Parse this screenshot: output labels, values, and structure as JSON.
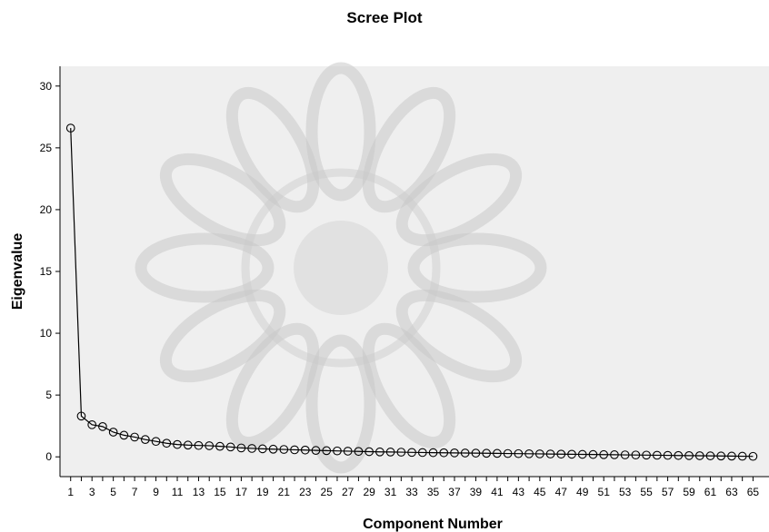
{
  "chart_data": {
    "type": "line",
    "title": "Scree Plot",
    "xlabel": "Component Number",
    "ylabel": "Eigenvalue",
    "x": [
      1,
      2,
      3,
      4,
      5,
      6,
      7,
      8,
      9,
      10,
      11,
      12,
      13,
      14,
      15,
      16,
      17,
      18,
      19,
      20,
      21,
      22,
      23,
      24,
      25,
      26,
      27,
      28,
      29,
      30,
      31,
      32,
      33,
      34,
      35,
      36,
      37,
      38,
      39,
      40,
      41,
      42,
      43,
      44,
      45,
      46,
      47,
      48,
      49,
      50,
      51,
      52,
      53,
      54,
      55,
      56,
      57,
      58,
      59,
      60,
      61,
      62,
      63,
      64,
      65
    ],
    "series": [
      {
        "values": [
          26.6,
          3.3,
          2.6,
          2.45,
          2.0,
          1.75,
          1.6,
          1.4,
          1.25,
          1.1,
          1.0,
          0.95,
          0.92,
          0.9,
          0.85,
          0.8,
          0.72,
          0.68,
          0.65,
          0.62,
          0.6,
          0.57,
          0.55,
          0.52,
          0.5,
          0.48,
          0.46,
          0.44,
          0.42,
          0.4,
          0.39,
          0.38,
          0.36,
          0.35,
          0.34,
          0.33,
          0.32,
          0.31,
          0.3,
          0.29,
          0.28,
          0.27,
          0.26,
          0.25,
          0.24,
          0.23,
          0.22,
          0.21,
          0.2,
          0.19,
          0.18,
          0.17,
          0.16,
          0.15,
          0.14,
          0.13,
          0.12,
          0.11,
          0.1,
          0.09,
          0.08,
          0.07,
          0.06,
          0.05,
          0.04
        ]
      }
    ],
    "x_tick_labels": [
      "1",
      "3",
      "5",
      "7",
      "9",
      "11",
      "13",
      "15",
      "17",
      "19",
      "21",
      "23",
      "25",
      "27",
      "29",
      "31",
      "33",
      "35",
      "37",
      "39",
      "41",
      "43",
      "45",
      "47",
      "49",
      "51",
      "53",
      "55",
      "57",
      "59",
      "61",
      "63",
      "65"
    ],
    "y_ticks": [
      0,
      5,
      10,
      15,
      20,
      25,
      30
    ],
    "xlim": [
      0,
      66.5
    ],
    "ylim": [
      -1.6,
      31.6
    ],
    "grid": false,
    "colors": {
      "plot_background": "#efefef",
      "line": "#000000",
      "marker_stroke": "#000000",
      "watermark": "#c9c9c9"
    }
  }
}
